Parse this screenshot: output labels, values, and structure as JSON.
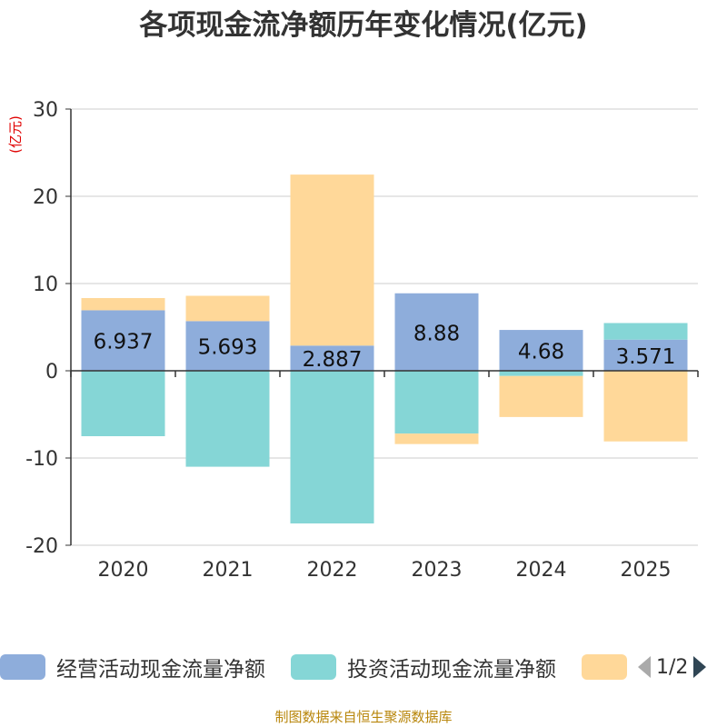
{
  "chart_data": {
    "type": "bar",
    "stacked": true,
    "title": "各项现金流净额历年变化情况(亿元)",
    "ylabel": "(亿元)",
    "ylim": [
      -20,
      30
    ],
    "yticks": [
      -20,
      -10,
      0,
      10,
      20,
      30
    ],
    "categories": [
      "2020",
      "2021",
      "2022",
      "2023",
      "2024",
      "2025"
    ],
    "series": [
      {
        "name": "经营活动现金流量净额",
        "color": "#8eaddb",
        "values": [
          6.937,
          5.693,
          2.887,
          8.88,
          4.68,
          3.571
        ],
        "labels": [
          "6.937",
          "5.693",
          "2.887",
          "8.88",
          "4.68",
          "3.571"
        ]
      },
      {
        "name": "投资活动现金流量净额",
        "color": "#85d6d6",
        "values": [
          -7.5,
          -11.0,
          -17.5,
          -7.2,
          -0.6,
          1.9
        ]
      },
      {
        "name": "",
        "color": "#ffd899",
        "values": [
          1.4,
          2.9,
          19.6,
          -1.2,
          -4.7,
          -8.1
        ]
      }
    ]
  },
  "legend": {
    "items": [
      {
        "label": "经营活动现金流量净额",
        "color": "#8eaddb"
      },
      {
        "label": "投资活动现金流量净额",
        "color": "#85d6d6"
      },
      {
        "label": "",
        "color": "#ffd899"
      }
    ],
    "pager": "1/2"
  },
  "footer": "制图数据来自恒生聚源数据库"
}
